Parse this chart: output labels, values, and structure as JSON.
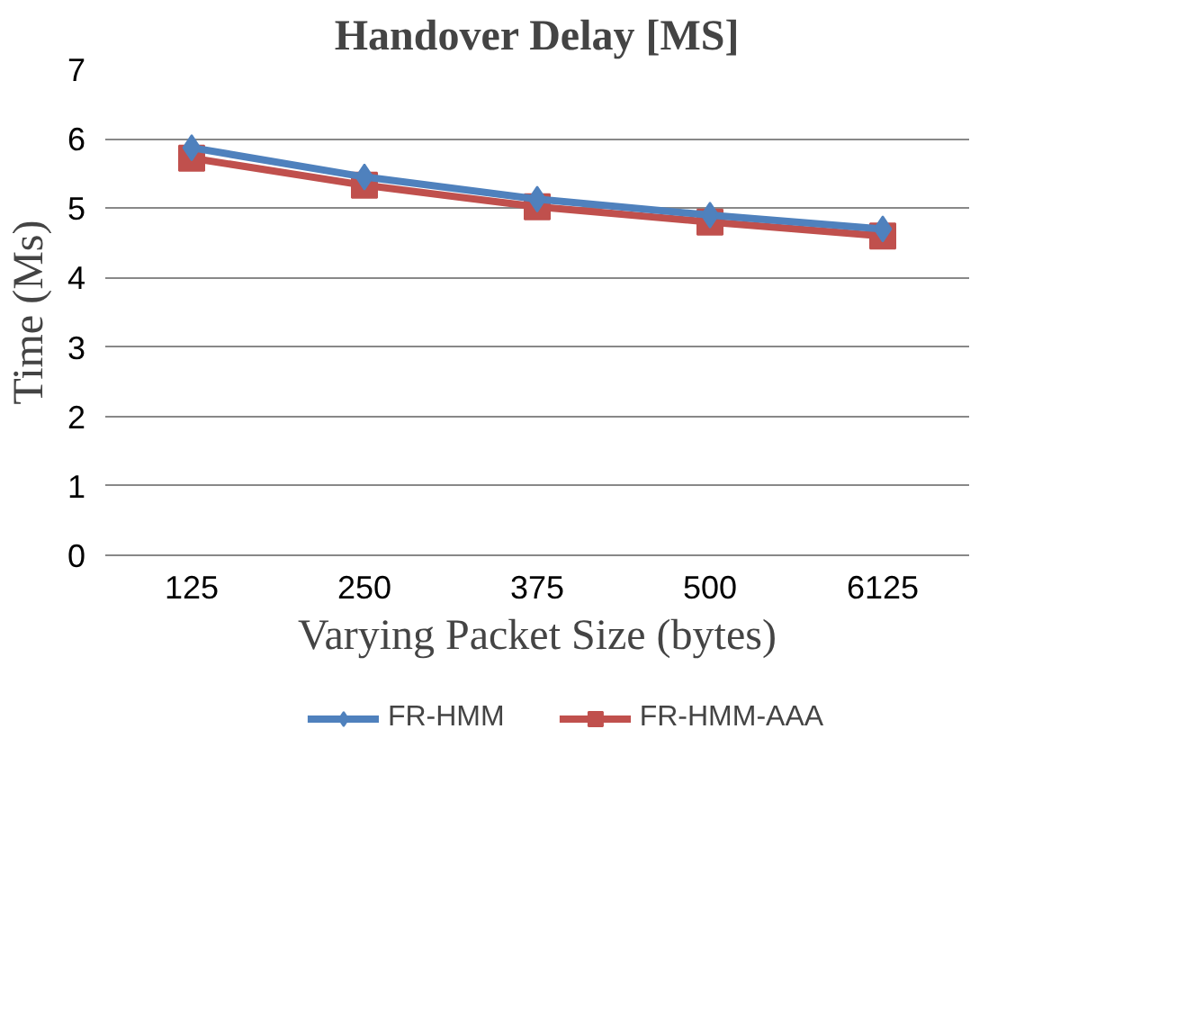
{
  "chart_data": {
    "type": "line",
    "title": "Handover Delay [MS]",
    "xlabel": "Varying Packet Size (bytes)",
    "ylabel": "Time (Ms)",
    "categories": [
      "125",
      "250",
      "375",
      "500",
      "6125"
    ],
    "series": [
      {
        "name": "FR-HMM",
        "color": "#4f81bd",
        "marker": "diamond",
        "values": [
          5.87,
          5.45,
          5.13,
          4.9,
          4.7
        ]
      },
      {
        "name": "FR-HMM-AAA",
        "color": "#c0504d",
        "marker": "square",
        "values": [
          5.72,
          5.33,
          5.02,
          4.8,
          4.6
        ]
      }
    ],
    "ylim": [
      0,
      7
    ],
    "yticks": [
      0,
      1,
      2,
      3,
      4,
      5,
      6,
      7
    ],
    "grid": "y",
    "legend": "bottom",
    "line_style": "solid"
  }
}
